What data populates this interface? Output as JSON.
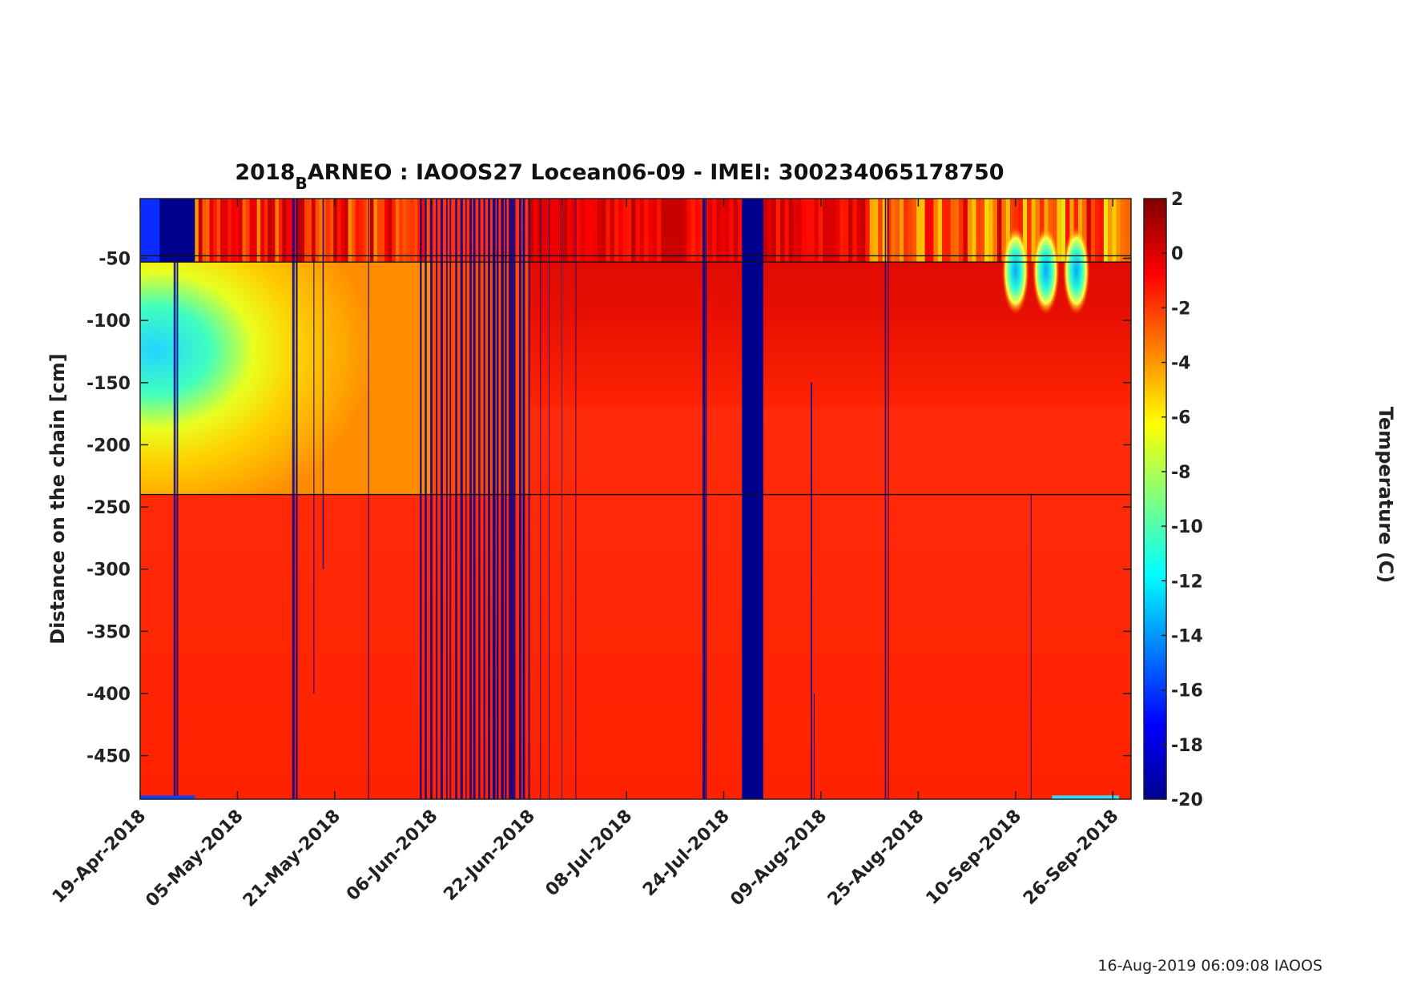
{
  "chart_data": {
    "type": "heatmap",
    "title": {
      "prefix": "2018",
      "subscript": "B",
      "suffix": "ARNEO : IAOOS27  Locean06-09 - IMEI: 300234065178750"
    },
    "ylabel": "Distance on the chain [cm]",
    "x_tick_labels": [
      "19-Apr-2018",
      "05-May-2018",
      "21-May-2018",
      "06-Jun-2018",
      "22-Jun-2018",
      "08-Jul-2018",
      "24-Jul-2018",
      "09-Aug-2018",
      "25-Aug-2018",
      "10-Sep-2018",
      "26-Sep-2018"
    ],
    "x_tick_dates": [
      "2018-04-19",
      "2018-05-05",
      "2018-05-21",
      "2018-06-06",
      "2018-06-22",
      "2018-07-08",
      "2018-07-24",
      "2018-08-09",
      "2018-08-25",
      "2018-09-10",
      "2018-09-26"
    ],
    "xlim": [
      "2018-04-19",
      "2018-09-29"
    ],
    "y_tick_labels": [
      "-50",
      "-100",
      "-150",
      "-200",
      "-250",
      "-300",
      "-350",
      "-400",
      "-450"
    ],
    "y_tick_values": [
      -50,
      -100,
      -150,
      -200,
      -250,
      -300,
      -350,
      -400,
      -450
    ],
    "ylim": [
      -485,
      -2
    ],
    "horizontal_lines_cm": [
      -48,
      -53,
      -240
    ],
    "colorbar": {
      "label": "Temperature (C)",
      "range": [
        -20,
        2
      ],
      "tick_values": [
        2,
        0,
        -2,
        -4,
        -6,
        -8,
        -10,
        -12,
        -14,
        -16,
        -18,
        -20
      ],
      "tick_labels": [
        "2",
        "0",
        "-2",
        "-4",
        "-6",
        "-8",
        "-10",
        "-12",
        "-14",
        "-16",
        "-18",
        "-20"
      ],
      "colormap": "jet"
    },
    "data_summary": {
      "water_temperature_c": -1.5,
      "air_layer_early_temperature_c": -19,
      "snow_ice_cold_core_temperature_c": -11,
      "near_surface_late_temperature_c": 0,
      "missing_value_temperature_c": -20,
      "gap_period": [
        "2018-07-27",
        "2018-07-29"
      ]
    }
  },
  "footer": "16-Aug-2019 06:09:08 IAOOS"
}
